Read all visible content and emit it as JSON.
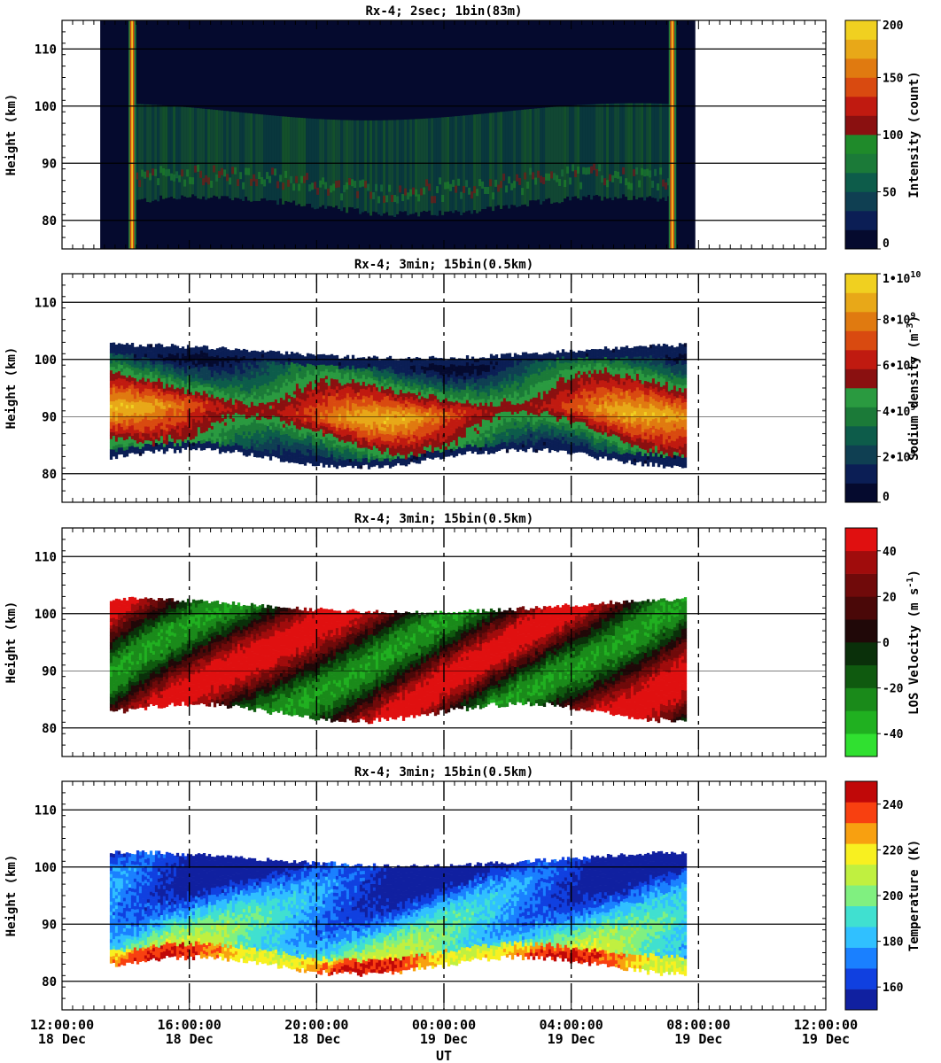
{
  "chart_data": {
    "type": "heatmap",
    "xlabel": "UT",
    "x_ticks": [
      {
        "time": "12:00:00",
        "date": "18 Dec"
      },
      {
        "time": "16:00:00",
        "date": "18 Dec"
      },
      {
        "time": "20:00:00",
        "date": "18 Dec"
      },
      {
        "time": "00:00:00",
        "date": "19 Dec"
      },
      {
        "time": "04:00:00",
        "date": "19 Dec"
      },
      {
        "time": "08:00:00",
        "date": "19 Dec"
      },
      {
        "time": "12:00:00",
        "date": "19 Dec"
      }
    ],
    "x_range_hours": [
      0,
      24
    ],
    "ylabel": "Height (km)",
    "y_ticks": [
      80,
      90,
      100,
      110
    ],
    "ylim": [
      75,
      115
    ],
    "panels": [
      {
        "title": "Rx-4;  2sec; 1bin(83m)",
        "colorbar_label": "Intensity (count)",
        "colorbar_ticks": [
          "0",
          "50",
          "100",
          "150",
          "200"
        ],
        "colorbar_range": [
          0,
          200
        ],
        "colors": [
          "#050a2e",
          "#0b1e55",
          "#0f3f52",
          "#0d5c4a",
          "#1b7a38",
          "#1f8a2a",
          "#8a1010",
          "#c01a10",
          "#d94a10",
          "#e07a10",
          "#e8a818",
          "#f0d020"
        ],
        "data_window_hours": [
          1.2,
          19.9
        ],
        "sodium_layer_km": [
          82,
          100
        ]
      },
      {
        "title": "Rx-4; 3min; 15bin(0.5km)",
        "colorbar_label": "Sodium density (m^-3)",
        "colorbar_ticks": [
          "0",
          "2•10^9",
          "4•10^9",
          "6•10^9",
          "8•10^9",
          "1•10^10"
        ],
        "colorbar_range": [
          0,
          10000000000
        ],
        "colors": [
          "#050a2e",
          "#0b1e55",
          "#0f3f52",
          "#0d5c4a",
          "#1b7a38",
          "#2a9a40",
          "#8a1010",
          "#c01a10",
          "#d94a10",
          "#e07a10",
          "#e8a818",
          "#f0d020"
        ],
        "data_window_hours": [
          1.5,
          19.6
        ],
        "layer_km": [
          81,
          102
        ]
      },
      {
        "title": "Rx-4; 3min; 15bin(0.5km)",
        "colorbar_label": "LOS Velocity (m s^-1)",
        "colorbar_ticks": [
          "-40",
          "-20",
          "0",
          "20",
          "40"
        ],
        "colorbar_range": [
          -50,
          50
        ],
        "colors": [
          "#30e030",
          "#20b020",
          "#1a8a1a",
          "#0f5a0f",
          "#0a300a",
          "#200808",
          "#4a0808",
          "#700a0a",
          "#a00c0c",
          "#e01010"
        ],
        "data_window_hours": [
          1.5,
          19.6
        ],
        "layer_km": [
          81,
          102
        ]
      },
      {
        "title": "Rx-4; 3min; 15bin(0.5km)",
        "colorbar_label": "Temperature (K)",
        "colorbar_ticks": [
          "160",
          "180",
          "200",
          "220",
          "240"
        ],
        "colorbar_range": [
          150,
          250
        ],
        "colors": [
          "#1020a0",
          "#1040e0",
          "#1a80ff",
          "#30c0ff",
          "#40e0d0",
          "#80f080",
          "#c0f040",
          "#f8f020",
          "#f8a010",
          "#f84010",
          "#c00808"
        ],
        "data_window_hours": [
          1.5,
          19.6
        ],
        "layer_km": [
          81,
          102
        ]
      }
    ]
  }
}
